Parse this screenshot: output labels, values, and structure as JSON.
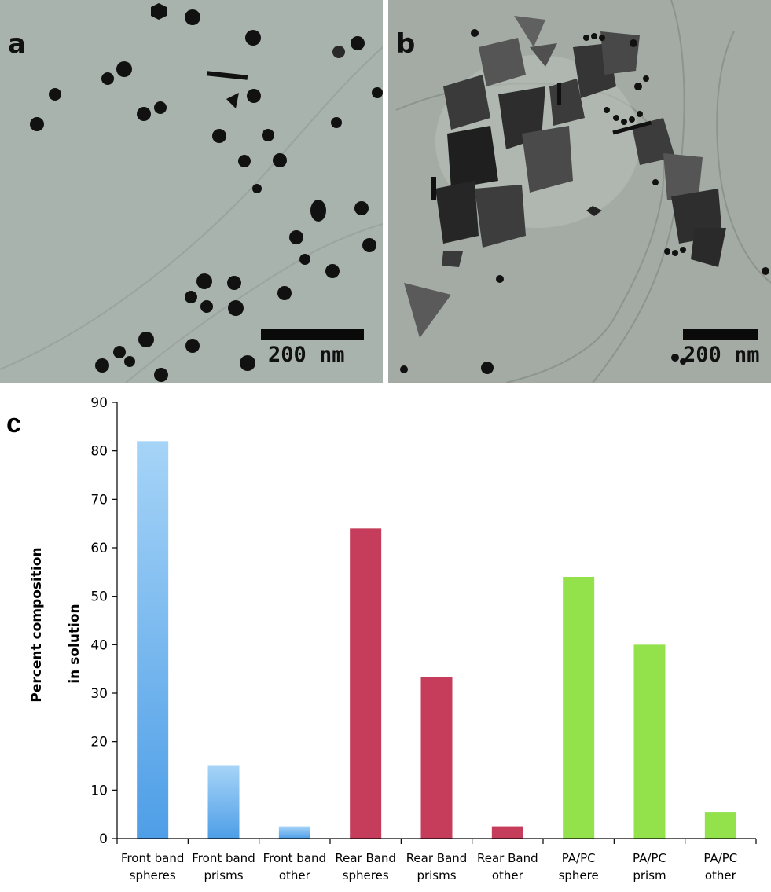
{
  "panels": {
    "a": {
      "letter": "a",
      "scale_label": "200 nm"
    },
    "b": {
      "letter": "b",
      "scale_label": "200 nm"
    },
    "c": {
      "letter": "c"
    }
  },
  "colors": {
    "front_band": "#6fb6ee",
    "rear_band": "#c53d5a",
    "pa_pc": "#93e24c",
    "tem_background_a": "#a8b2ad",
    "tem_background_b": "#a3aaa3"
  },
  "chart_data": {
    "type": "bar",
    "ylabel": [
      "Percent composition",
      "in solution"
    ],
    "ylim": [
      0,
      90
    ],
    "yticks": [
      0,
      10,
      20,
      30,
      40,
      50,
      60,
      70,
      80,
      90
    ],
    "grid": false,
    "legend": "none",
    "categories": [
      [
        "Front band",
        "spheres"
      ],
      [
        "Front band",
        "prisms"
      ],
      [
        "Front band",
        "other"
      ],
      [
        "Rear Band",
        "spheres"
      ],
      [
        "Rear Band",
        "prisms"
      ],
      [
        "Rear Band",
        "other"
      ],
      [
        "PA/PC",
        "sphere"
      ],
      [
        "PA/PC",
        "prism"
      ],
      [
        "PA/PC",
        "other"
      ]
    ],
    "values": [
      82,
      15,
      2.5,
      64,
      33.3,
      2.5,
      54,
      40,
      5.5
    ],
    "bar_groups": [
      "front_band",
      "front_band",
      "front_band",
      "rear_band",
      "rear_band",
      "rear_band",
      "pa_pc",
      "pa_pc",
      "pa_pc"
    ]
  }
}
